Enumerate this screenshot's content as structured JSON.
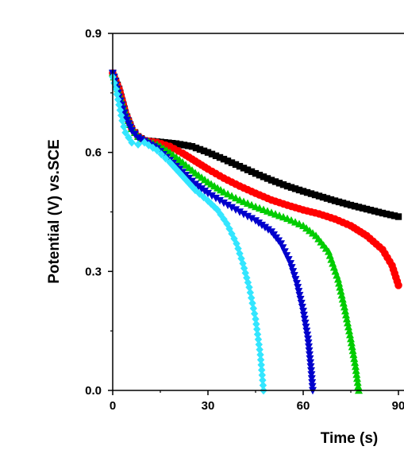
{
  "chart_data": {
    "type": "line",
    "xlabel": "Time (s)",
    "ylabel": "Potential (V) vs.SCE",
    "xlim": [
      0,
      90
    ],
    "ylim": [
      0.0,
      0.9
    ],
    "x_ticks": [
      "0",
      "30",
      "60",
      "90"
    ],
    "y_ticks": [
      "0.0",
      "0.3",
      "0.6",
      "0.9"
    ],
    "grid": false,
    "series": [
      {
        "color": "#000000",
        "marker": "square",
        "points": [
          [
            0,
            0.8
          ],
          [
            2,
            0.76
          ],
          [
            4,
            0.7
          ],
          [
            6,
            0.66
          ],
          [
            8,
            0.64
          ],
          [
            10,
            0.63
          ],
          [
            14,
            0.627
          ],
          [
            20,
            0.622
          ],
          [
            25,
            0.615
          ],
          [
            30,
            0.6
          ],
          [
            35,
            0.583
          ],
          [
            40,
            0.565
          ],
          [
            45,
            0.547
          ],
          [
            50,
            0.53
          ],
          [
            55,
            0.515
          ],
          [
            60,
            0.502
          ],
          [
            65,
            0.49
          ],
          [
            70,
            0.478
          ],
          [
            75,
            0.467
          ],
          [
            80,
            0.457
          ],
          [
            85,
            0.447
          ],
          [
            90,
            0.438
          ]
        ]
      },
      {
        "color": "#ff0000",
        "marker": "circle",
        "points": [
          [
            0,
            0.8
          ],
          [
            2,
            0.76
          ],
          [
            4,
            0.7
          ],
          [
            6,
            0.66
          ],
          [
            8,
            0.64
          ],
          [
            10,
            0.63
          ],
          [
            14,
            0.625
          ],
          [
            18,
            0.615
          ],
          [
            22,
            0.598
          ],
          [
            26,
            0.578
          ],
          [
            30,
            0.558
          ],
          [
            35,
            0.535
          ],
          [
            40,
            0.515
          ],
          [
            45,
            0.497
          ],
          [
            50,
            0.48
          ],
          [
            55,
            0.467
          ],
          [
            60,
            0.455
          ],
          [
            65,
            0.445
          ],
          [
            70,
            0.432
          ],
          [
            75,
            0.415
          ],
          [
            80,
            0.39
          ],
          [
            85,
            0.355
          ],
          [
            88,
            0.315
          ],
          [
            90,
            0.265
          ]
        ]
      },
      {
        "color": "#00cc00",
        "marker": "triangle-up",
        "points": [
          [
            0,
            0.8
          ],
          [
            2,
            0.75
          ],
          [
            4,
            0.7
          ],
          [
            6,
            0.66
          ],
          [
            8,
            0.64
          ],
          [
            10,
            0.63
          ],
          [
            14,
            0.62
          ],
          [
            18,
            0.6
          ],
          [
            22,
            0.575
          ],
          [
            26,
            0.548
          ],
          [
            30,
            0.525
          ],
          [
            35,
            0.5
          ],
          [
            40,
            0.48
          ],
          [
            45,
            0.463
          ],
          [
            50,
            0.448
          ],
          [
            55,
            0.433
          ],
          [
            60,
            0.415
          ],
          [
            64,
            0.39
          ],
          [
            68,
            0.35
          ],
          [
            71,
            0.28
          ],
          [
            73,
            0.21
          ],
          [
            75,
            0.13
          ],
          [
            76.5,
            0.06
          ],
          [
            77.5,
            0.0
          ]
        ]
      },
      {
        "color": "#0000cc",
        "marker": "triangle-down",
        "points": [
          [
            0,
            0.8
          ],
          [
            2,
            0.74
          ],
          [
            4,
            0.69
          ],
          [
            6,
            0.655
          ],
          [
            8,
            0.637
          ],
          [
            10,
            0.628
          ],
          [
            14,
            0.61
          ],
          [
            18,
            0.58
          ],
          [
            22,
            0.55
          ],
          [
            26,
            0.52
          ],
          [
            30,
            0.497
          ],
          [
            35,
            0.473
          ],
          [
            40,
            0.45
          ],
          [
            45,
            0.428
          ],
          [
            50,
            0.4
          ],
          [
            53,
            0.37
          ],
          [
            56,
            0.32
          ],
          [
            58,
            0.27
          ],
          [
            60,
            0.2
          ],
          [
            61.5,
            0.13
          ],
          [
            62.5,
            0.05
          ],
          [
            63,
            0.0
          ]
        ]
      },
      {
        "color": "#33e6ff",
        "marker": "diamond",
        "points": [
          [
            0,
            0.79
          ],
          [
            1,
            0.76
          ],
          [
            2,
            0.72
          ],
          [
            3,
            0.68
          ],
          [
            4,
            0.65
          ],
          [
            6,
            0.625
          ],
          [
            8,
            0.62
          ],
          [
            10,
            0.625
          ],
          [
            14,
            0.605
          ],
          [
            18,
            0.575
          ],
          [
            22,
            0.54
          ],
          [
            26,
            0.505
          ],
          [
            30,
            0.478
          ],
          [
            33,
            0.455
          ],
          [
            36,
            0.42
          ],
          [
            39,
            0.37
          ],
          [
            41,
            0.32
          ],
          [
            43,
            0.26
          ],
          [
            45,
            0.18
          ],
          [
            46.5,
            0.09
          ],
          [
            47.5,
            0.0
          ]
        ]
      }
    ]
  }
}
